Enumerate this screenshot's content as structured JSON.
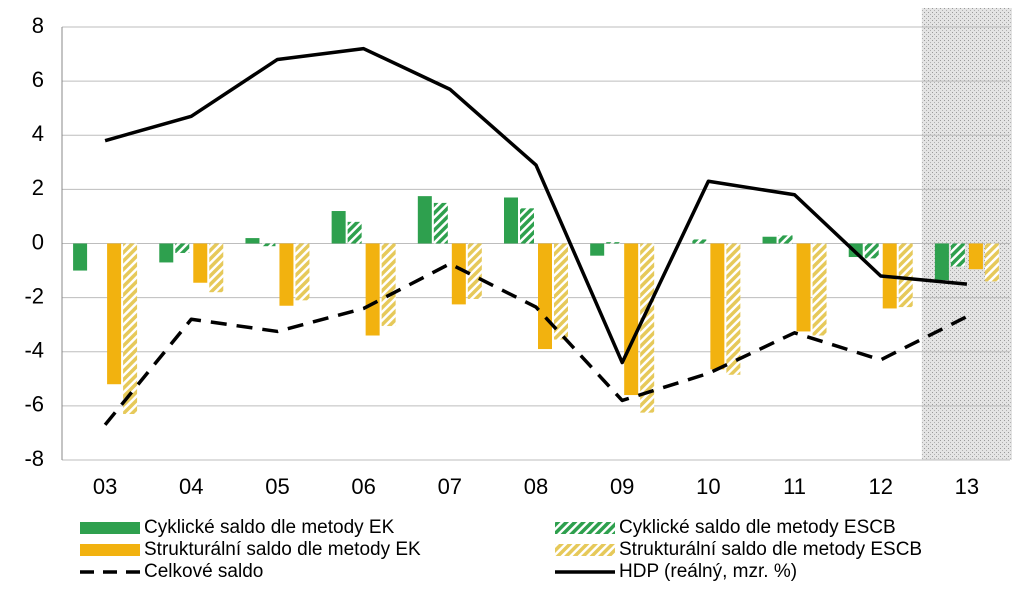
{
  "chart_data": {
    "type": "bar",
    "categories": [
      "03",
      "04",
      "05",
      "06",
      "07",
      "08",
      "09",
      "10",
      "11",
      "12",
      "13"
    ],
    "series": [
      {
        "name": "Cyklické saldo dle metody EK",
        "type": "bar",
        "color": "#2ea04e",
        "hatch": false,
        "values": [
          -1.0,
          -0.7,
          0.2,
          1.2,
          1.75,
          1.7,
          -0.45,
          0.0,
          0.25,
          -0.5,
          -1.35
        ]
      },
      {
        "name": "Cyklické saldo dle metody ESCB",
        "type": "bar",
        "color": "#2ea04e",
        "hatch": true,
        "values": [
          0.0,
          -0.35,
          -0.1,
          0.8,
          1.5,
          1.3,
          0.05,
          0.15,
          0.3,
          -0.55,
          -0.85
        ]
      },
      {
        "name": "Strukturální saldo dle metody EK",
        "type": "bar",
        "color": "#f2b20f",
        "hatch": false,
        "values": [
          -5.2,
          -1.45,
          -2.3,
          -3.4,
          -2.25,
          -3.9,
          -5.6,
          -4.65,
          -3.25,
          -2.4,
          -0.95
        ]
      },
      {
        "name": "Strukturální saldo dle metody ESCB",
        "type": "bar",
        "color": "#e6c95a",
        "hatch": true,
        "values": [
          -6.3,
          -1.8,
          -2.1,
          -3.05,
          -2.05,
          -3.55,
          -6.25,
          -4.85,
          -3.4,
          -2.35,
          -1.4
        ]
      },
      {
        "name": "Celkové saldo",
        "type": "line",
        "color": "#000000",
        "dashed": true,
        "values": [
          -6.7,
          -2.8,
          -3.25,
          -2.4,
          -0.75,
          -2.35,
          -5.8,
          -4.8,
          -3.3,
          -4.3,
          -2.7
        ]
      },
      {
        "name": "HDP (reálný, mzr. %)",
        "type": "line",
        "color": "#000000",
        "dashed": false,
        "values": [
          3.8,
          4.7,
          6.8,
          7.2,
          5.7,
          2.9,
          -4.4,
          2.3,
          1.8,
          -1.2,
          -1.5
        ]
      }
    ],
    "ylim": [
      -8,
      8
    ],
    "yticks": [
      -8,
      -6,
      -4,
      -2,
      0,
      2,
      4,
      6,
      8
    ],
    "grid": true
  }
}
